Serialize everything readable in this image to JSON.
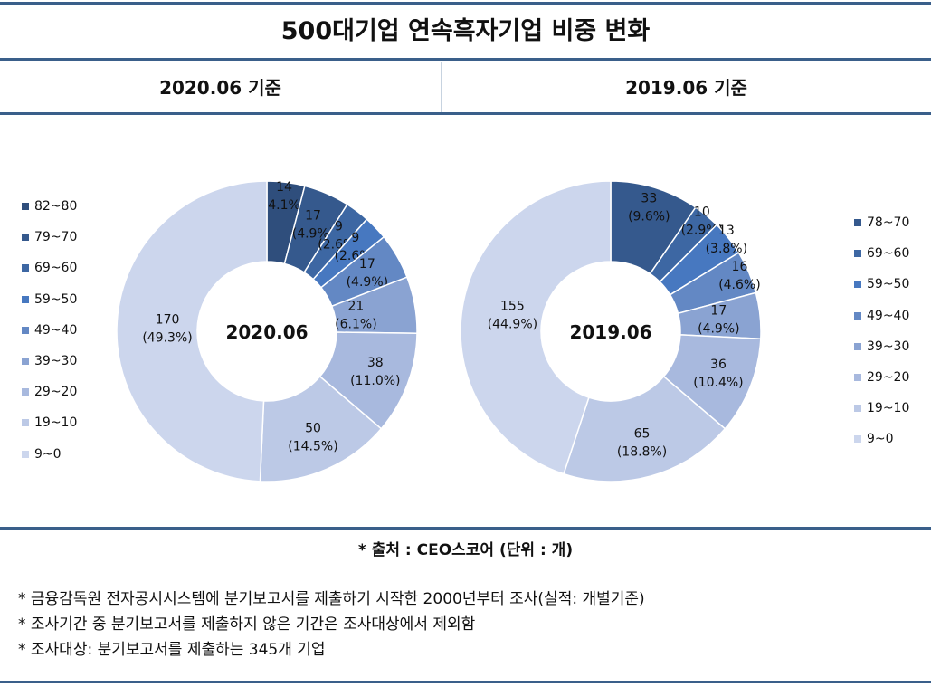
{
  "title": "500대기업 연속흑자기업 비중 변화",
  "colors": [
    "#2f4e7c",
    "#35598d",
    "#3d67a3",
    "#4778c0",
    "#6388c4",
    "#8aa3d2",
    "#a8b9de",
    "#bcc9e6",
    "#ccd6ed"
  ],
  "chart_data": [
    {
      "type": "pie",
      "subtitle": "2020.06 기준",
      "center_label": "2020.06",
      "legend_position": "left",
      "categories": [
        "82~80",
        "79~70",
        "69~60",
        "59~50",
        "49~40",
        "39~30",
        "29~20",
        "19~10",
        "9~0"
      ],
      "values": [
        14,
        17,
        9,
        9,
        17,
        21,
        38,
        50,
        170
      ],
      "percent_labels": [
        "(4.1%)",
        "(4.9%)",
        "(2.6%)",
        "(2.6%)",
        "(4.9%)",
        "(6.1%)",
        "(11.0%)",
        "(14.5%)",
        "(49.3%)"
      ]
    },
    {
      "type": "pie",
      "subtitle": "2019.06 기준",
      "center_label": "2019.06",
      "legend_position": "right",
      "categories": [
        "78~70",
        "69~60",
        "59~50",
        "49~40",
        "39~30",
        "29~20",
        "19~10",
        "9~0"
      ],
      "values": [
        33,
        10,
        13,
        16,
        17,
        36,
        65,
        155
      ],
      "percent_labels": [
        "(9.6%)",
        "(2.9%)",
        "(3.8%)",
        "(4.6%)",
        "(4.9%)",
        "(10.4%)",
        "(18.8%)",
        "(44.9%)"
      ]
    }
  ],
  "source": "* 출처 : CEO스코어 (단위 : 개)",
  "notes": [
    "* 금융감독원 전자공시시스템에 분기보고서를 제출하기 시작한 2000년부터 조사(실적: 개별기준)",
    "* 조사기간 중 분기보고서를 제출하지 않은 기간은 조사대상에서 제외함",
    "* 조사대상: 분기보고서를 제출하는 345개 기업"
  ]
}
